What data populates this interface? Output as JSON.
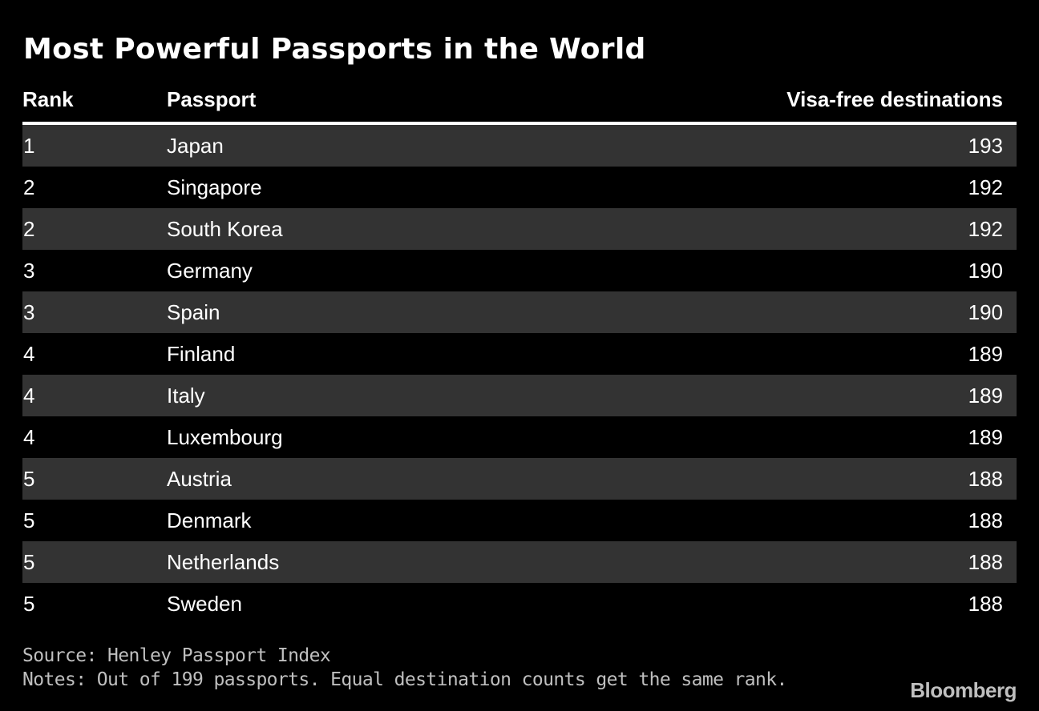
{
  "chart_data": {
    "type": "table",
    "title": "Most Powerful Passports in the World",
    "columns": [
      "Rank",
      "Passport",
      "Visa-free destinations"
    ],
    "rows": [
      {
        "rank": "1",
        "passport": "Japan",
        "visa_free": "193"
      },
      {
        "rank": "2",
        "passport": "Singapore",
        "visa_free": "192"
      },
      {
        "rank": "2",
        "passport": "South Korea",
        "visa_free": "192"
      },
      {
        "rank": "3",
        "passport": "Germany",
        "visa_free": "190"
      },
      {
        "rank": "3",
        "passport": "Spain",
        "visa_free": "190"
      },
      {
        "rank": "4",
        "passport": "Finland",
        "visa_free": "189"
      },
      {
        "rank": "4",
        "passport": "Italy",
        "visa_free": "189"
      },
      {
        "rank": "4",
        "passport": "Luxembourg",
        "visa_free": "189"
      },
      {
        "rank": "5",
        "passport": "Austria",
        "visa_free": "188"
      },
      {
        "rank": "5",
        "passport": "Denmark",
        "visa_free": "188"
      },
      {
        "rank": "5",
        "passport": "Netherlands",
        "visa_free": "188"
      },
      {
        "rank": "5",
        "passport": "Sweden",
        "visa_free": "188"
      }
    ],
    "source": "Source: Henley Passport Index",
    "notes": "Notes: Out of 199 passports. Equal destination counts get the same rank."
  },
  "brand": "Bloomberg",
  "colors": {
    "background": "#000000",
    "text": "#ffffff",
    "alt_row": "#333333",
    "footer_text": "#bfbfbf"
  }
}
